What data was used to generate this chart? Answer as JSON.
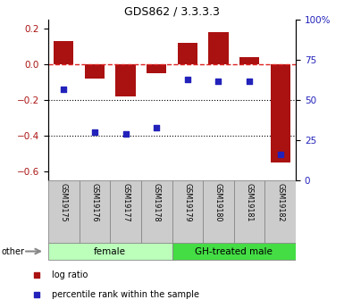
{
  "title": "GDS862 / 3.3.3.3",
  "samples": [
    "GSM19175",
    "GSM19176",
    "GSM19177",
    "GSM19178",
    "GSM19179",
    "GSM19180",
    "GSM19181",
    "GSM19182"
  ],
  "log_ratio": [
    0.13,
    -0.08,
    -0.18,
    -0.05,
    0.12,
    0.18,
    0.04,
    -0.55
  ],
  "percentile_rank": [
    57,
    30,
    29,
    33,
    63,
    62,
    62,
    16
  ],
  "groups": [
    {
      "label": "female",
      "start": 0,
      "end": 4,
      "color": "#bbffbb"
    },
    {
      "label": "GH-treated male",
      "start": 4,
      "end": 8,
      "color": "#44dd44"
    }
  ],
  "ylim_left": [
    -0.65,
    0.25
  ],
  "ylim_right": [
    0,
    100
  ],
  "yticks_left": [
    0.2,
    0.0,
    -0.2,
    -0.4,
    -0.6
  ],
  "yticks_right": [
    100,
    75,
    50,
    25,
    0
  ],
  "bar_color": "#aa1111",
  "dot_color": "#2222bb",
  "hline_color": "#dd2222",
  "background_color": "#ffffff",
  "other_label": "other",
  "legend_bar_label": "log ratio",
  "legend_dot_label": "percentile rank within the sample"
}
